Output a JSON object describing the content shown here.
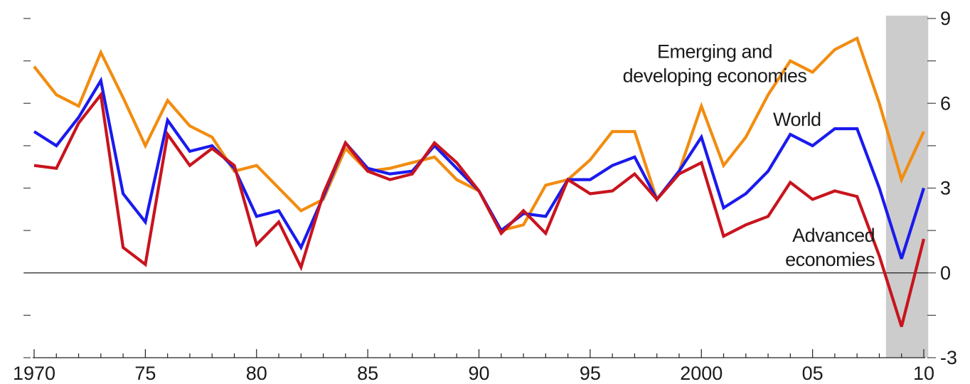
{
  "chart_data": {
    "type": "line",
    "title": "",
    "xlabel": "",
    "ylabel": "",
    "x": [
      1970,
      1971,
      1972,
      1973,
      1974,
      1975,
      1976,
      1977,
      1978,
      1979,
      1980,
      1981,
      1982,
      1983,
      1984,
      1985,
      1986,
      1987,
      1988,
      1989,
      1990,
      1991,
      1992,
      1993,
      1994,
      1995,
      1996,
      1997,
      1998,
      1999,
      2000,
      2001,
      2002,
      2003,
      2004,
      2005,
      2006,
      2007,
      2008,
      2009,
      2010
    ],
    "xlim": [
      1970,
      2010
    ],
    "ylim": [
      -3,
      9
    ],
    "x_tick_labels": [
      {
        "x": 1970,
        "label": "1970"
      },
      {
        "x": 1975,
        "label": "75"
      },
      {
        "x": 1980,
        "label": "80"
      },
      {
        "x": 1985,
        "label": "85"
      },
      {
        "x": 1990,
        "label": "90"
      },
      {
        "x": 1995,
        "label": "95"
      },
      {
        "x": 2000,
        "label": "2000"
      },
      {
        "x": 2005,
        "label": "05"
      },
      {
        "x": 2010,
        "label": "10"
      }
    ],
    "y_ticks_major": [
      {
        "y": -3,
        "label": "-3"
      },
      {
        "y": 0,
        "label": "0"
      },
      {
        "y": 3,
        "label": "3"
      },
      {
        "y": 6,
        "label": "6"
      },
      {
        "y": 9,
        "label": "9"
      }
    ],
    "y_ticks_minor": [
      -1.5,
      1.5,
      4.5,
      7.5
    ],
    "zero_line": 0,
    "shaded_region": {
      "x_start": 2008.3,
      "x_end": 2010.2,
      "color": "#cccccc"
    },
    "series": [
      {
        "key": "emerging",
        "name": "Emerging and developing economies",
        "color": "#f28c10",
        "values": [
          7.3,
          6.3,
          5.9,
          7.8,
          6.2,
          4.5,
          6.1,
          5.2,
          4.8,
          3.6,
          3.8,
          3.0,
          2.2,
          2.6,
          4.4,
          3.6,
          3.7,
          3.9,
          4.1,
          3.3,
          2.9,
          1.5,
          1.7,
          3.1,
          3.3,
          4.0,
          5.0,
          5.0,
          2.6,
          3.6,
          5.9,
          3.8,
          4.8,
          6.3,
          7.5,
          7.1,
          7.9,
          8.3,
          6.0,
          3.3,
          5.0
        ]
      },
      {
        "key": "world",
        "name": "World",
        "color": "#1a1aee",
        "values": [
          5.0,
          4.5,
          5.5,
          6.8,
          2.8,
          1.8,
          5.4,
          4.3,
          4.5,
          3.7,
          2.0,
          2.2,
          0.9,
          2.7,
          4.6,
          3.7,
          3.5,
          3.6,
          4.5,
          3.7,
          2.9,
          1.5,
          2.1,
          2.0,
          3.3,
          3.3,
          3.8,
          4.1,
          2.6,
          3.6,
          4.8,
          2.3,
          2.8,
          3.6,
          4.9,
          4.5,
          5.1,
          5.1,
          3.0,
          0.5,
          3.0
        ]
      },
      {
        "key": "advanced",
        "name": "Advanced economies",
        "color": "#c8141e",
        "values": [
          3.8,
          3.7,
          5.3,
          6.3,
          0.9,
          0.3,
          4.9,
          3.8,
          4.4,
          3.8,
          1.0,
          1.8,
          0.2,
          2.8,
          4.6,
          3.6,
          3.3,
          3.5,
          4.6,
          3.9,
          2.9,
          1.4,
          2.2,
          1.4,
          3.3,
          2.8,
          2.9,
          3.5,
          2.6,
          3.5,
          3.9,
          1.3,
          1.7,
          2.0,
          3.2,
          2.6,
          2.9,
          2.7,
          0.6,
          -1.9,
          1.2
        ]
      }
    ],
    "annotations": [
      {
        "key": "emerging",
        "lines": [
          "Emerging and",
          "developing economies"
        ],
        "at_x": 2000.6,
        "at_y": 7.6,
        "anchor": "middle"
      },
      {
        "key": "world",
        "lines": [
          "World"
        ],
        "at_x": 2004.3,
        "at_y": 5.2,
        "anchor": "middle"
      },
      {
        "key": "advanced",
        "lines": [
          "Advanced",
          "economies"
        ],
        "at_x": 2007.8,
        "at_y": 1.1,
        "anchor": "end"
      }
    ]
  }
}
